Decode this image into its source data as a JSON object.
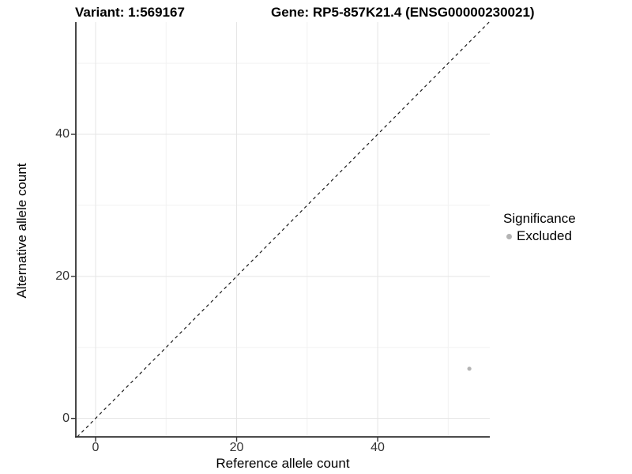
{
  "header": {
    "variant_title": "Variant: 1:569167",
    "gene_title": "Gene: RP5-857K21.4 (ENSG00000230021)"
  },
  "chart_data": {
    "type": "scatter",
    "title": "Variant: 1:569167    Gene: RP5-857K21.4 (ENSG00000230021)",
    "xlabel": "Reference allele count",
    "ylabel": "Alternative allele count",
    "xlim": [
      -2.8,
      55.9
    ],
    "ylim": [
      -2.6,
      55.8
    ],
    "x_major_ticks": [
      0,
      20,
      40
    ],
    "y_major_ticks": [
      0,
      20,
      40
    ],
    "x_minor_ticks": [
      10,
      30,
      50
    ],
    "y_minor_ticks": [
      10,
      30,
      50
    ],
    "grid": true,
    "reference_line": {
      "kind": "identity",
      "style": "dashed"
    },
    "series": [
      {
        "name": "Excluded",
        "points": [
          {
            "x": 53,
            "y": 7
          }
        ]
      }
    ],
    "legend": {
      "title": "Significance",
      "position": "right",
      "items": [
        {
          "label": "Excluded",
          "color": "#b3b3b3"
        }
      ]
    }
  },
  "colors": {
    "point": "#b3b3b3",
    "grid_major": "#e5e5e5",
    "grid_minor": "#f2f2f2",
    "axis_line": "#333333",
    "tick_mark": "#333333",
    "dashed_line": "#1a1a1a",
    "tick_text": "#333333",
    "title_text": "#000000"
  }
}
